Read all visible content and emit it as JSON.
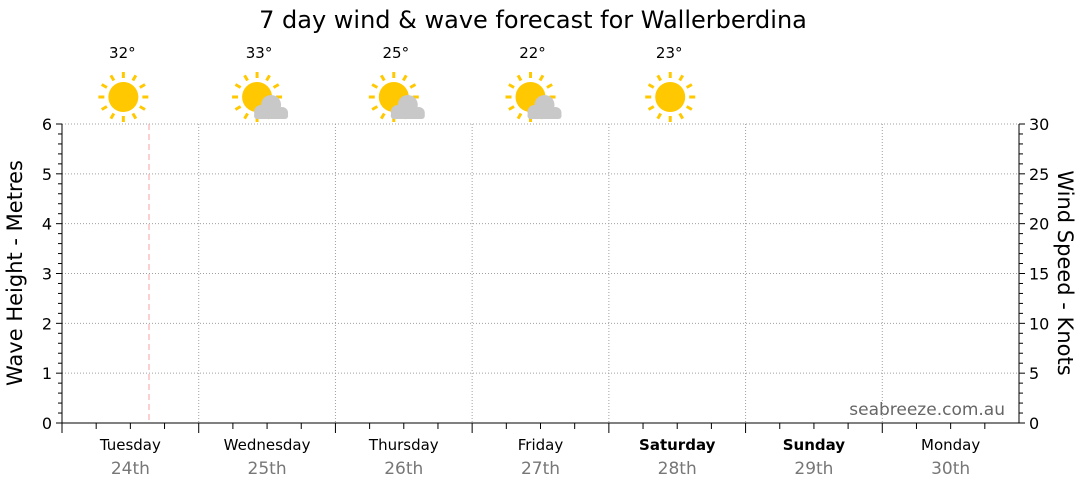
{
  "chart_data": {
    "type": "line",
    "title": "7 day wind & wave forecast for Wallerberdina",
    "ylabel_left": "Wave Height - Metres",
    "ylabel_right": "Wind Speed - Knots",
    "ylim_left": [
      0,
      6
    ],
    "ylim_right": [
      0,
      30
    ],
    "yticks_left": [
      "0",
      "1",
      "2",
      "3",
      "4",
      "5",
      "6"
    ],
    "yticks_right": [
      "0",
      "5",
      "10",
      "15",
      "20",
      "25",
      "30"
    ],
    "grid": true,
    "days": [
      {
        "name": "Tuesday",
        "date": "24th",
        "bold": false,
        "temp": "32°",
        "icon": "sunny"
      },
      {
        "name": "Wednesday",
        "date": "25th",
        "bold": false,
        "temp": "33°",
        "icon": "partly-cloudy"
      },
      {
        "name": "Thursday",
        "date": "26th",
        "bold": false,
        "temp": "25°",
        "icon": "partly-cloudy"
      },
      {
        "name": "Friday",
        "date": "27th",
        "bold": false,
        "temp": "22°",
        "icon": "partly-cloudy"
      },
      {
        "name": "Saturday",
        "date": "28th",
        "bold": true,
        "temp": "23°",
        "icon": "sunny"
      },
      {
        "name": "Sunday",
        "date": "29th",
        "bold": true
      },
      {
        "name": "Monday",
        "date": "30th",
        "bold": false
      }
    ],
    "series": [],
    "watermark": "seabreeze.com.au",
    "colors": {
      "sun": "#ffc800",
      "cloud": "#c8c8c8",
      "now_line": "#f4a0a0",
      "grid": "#a0a0a0"
    }
  }
}
